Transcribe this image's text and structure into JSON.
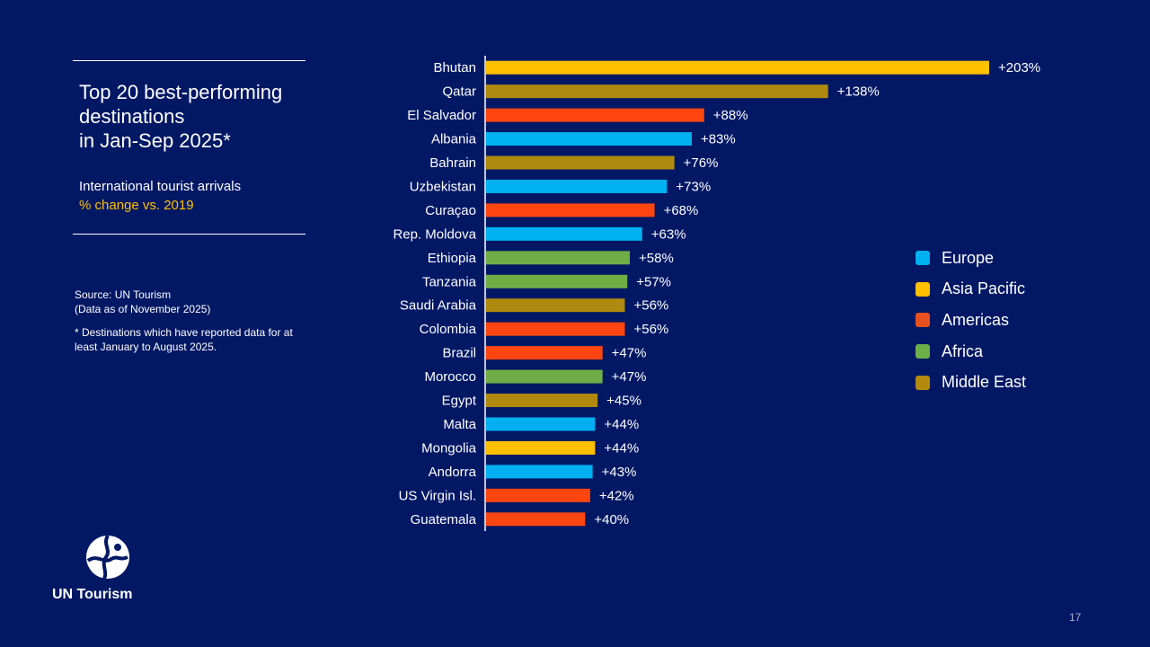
{
  "header": {
    "title_lines": [
      "Top 20 best-performing",
      "destinations",
      "in Jan-Sep 2025*"
    ],
    "subtitle": "International tourist arrivals",
    "subtitle_accent": "% change vs. 2019"
  },
  "source": {
    "line1": "Source: UN Tourism",
    "line2": "(Data as of November 2025)",
    "note": "* Destinations which have reported data for at least January to August 2025."
  },
  "logo": {
    "text": "UN Tourism",
    "icon": "un-tourism-globe-icon"
  },
  "page_number": "17",
  "colors": {
    "background": "#021865",
    "Europe": "#00B0F0",
    "Asia Pacific": "#FFC000",
    "Americas": "#FF4F0A",
    "Africa": "#70AD47",
    "Middle East": "#B8860B"
  },
  "legend": [
    {
      "label": "Europe",
      "color": "#00B0F0"
    },
    {
      "label": "Asia Pacific",
      "color": "#FFC000"
    },
    {
      "label": "Americas",
      "color": "#E8501E"
    },
    {
      "label": "Africa",
      "color": "#6CAE48"
    },
    {
      "label": "Middle East",
      "color": "#B38A0E"
    }
  ],
  "chart_data": {
    "type": "bar",
    "orientation": "horizontal",
    "title": "Top 20 best-performing destinations in Jan-Sep 2025*",
    "xlabel": "International tourist arrivals, % change vs. 2019",
    "ylabel": "",
    "xlim": [
      0,
      220
    ],
    "grid": false,
    "legend_position": "right",
    "value_format": "+{v}%",
    "categories": [
      "Bhutan",
      "Qatar",
      "El Salvador",
      "Albania",
      "Bahrain",
      "Uzbekistan",
      "Curaçao",
      "Rep. Moldova",
      "Ethiopia",
      "Tanzania",
      "Saudi Arabia",
      "Colombia",
      "Brazil",
      "Morocco",
      "Egypt",
      "Malta",
      "Mongolia",
      "Andorra",
      "US Virgin Isl.",
      "Guatemala"
    ],
    "values": [
      203,
      138,
      88,
      83,
      76,
      73,
      68,
      63,
      58,
      57,
      56,
      56,
      47,
      47,
      45,
      44,
      44,
      43,
      42,
      40
    ],
    "value_labels": [
      "+203%",
      "+138%",
      "+88%",
      "+83%",
      "+76%",
      "+73%",
      "+68%",
      "+63%",
      "+58%",
      "+57%",
      "+56%",
      "+56%",
      "+47%",
      "+47%",
      "+45%",
      "+44%",
      "+44%",
      "+43%",
      "+42%",
      "+40%"
    ],
    "regions": [
      "Asia Pacific",
      "Middle East",
      "Americas",
      "Europe",
      "Middle East",
      "Europe",
      "Americas",
      "Europe",
      "Africa",
      "Africa",
      "Middle East",
      "Americas",
      "Americas",
      "Africa",
      "Middle East",
      "Europe",
      "Asia Pacific",
      "Europe",
      "Americas",
      "Americas"
    ]
  }
}
